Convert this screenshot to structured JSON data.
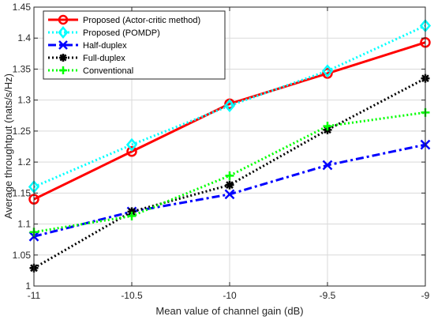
{
  "chart_data": {
    "type": "line",
    "xlabel": "Mean value of channel gain (dB)",
    "ylabel": "Average throughtput (nats/s/Hz)",
    "x": [
      -11,
      -10.5,
      -10,
      -9.5,
      -9
    ],
    "xlim": [
      -11,
      -9
    ],
    "ylim": [
      1,
      1.45
    ],
    "xticks": [
      "-11",
      "-10.5",
      "-10",
      "-9.5",
      "-9"
    ],
    "yticks": [
      "1",
      "1.05",
      "1.1",
      "1.15",
      "1.2",
      "1.25",
      "1.3",
      "1.35",
      "1.4",
      "1.45"
    ],
    "grid": true,
    "legend_position": "top-left",
    "series": [
      {
        "name": "Proposed (Actor-critic method)",
        "values": [
          1.14,
          1.217,
          1.294,
          1.343,
          1.393
        ],
        "color": "#ff0000",
        "line": "solid",
        "marker": "circle"
      },
      {
        "name": "Proposed (POMDP)",
        "values": [
          1.16,
          1.228,
          1.291,
          1.347,
          1.42
        ],
        "color": "#00ffff",
        "line": "dotted",
        "marker": "diamond"
      },
      {
        "name": "Half-duplex",
        "values": [
          1.08,
          1.12,
          1.148,
          1.195,
          1.228
        ],
        "color": "#0000ff",
        "line": "dashdot",
        "marker": "x"
      },
      {
        "name": "Full-duplex",
        "values": [
          1.029,
          1.12,
          1.163,
          1.252,
          1.335
        ],
        "color": "#000000",
        "line": "dotted",
        "marker": "asterisk"
      },
      {
        "name": "Conventional",
        "values": [
          1.087,
          1.113,
          1.178,
          1.258,
          1.28
        ],
        "color": "#00ff00",
        "line": "dotted",
        "marker": "plus"
      }
    ]
  }
}
